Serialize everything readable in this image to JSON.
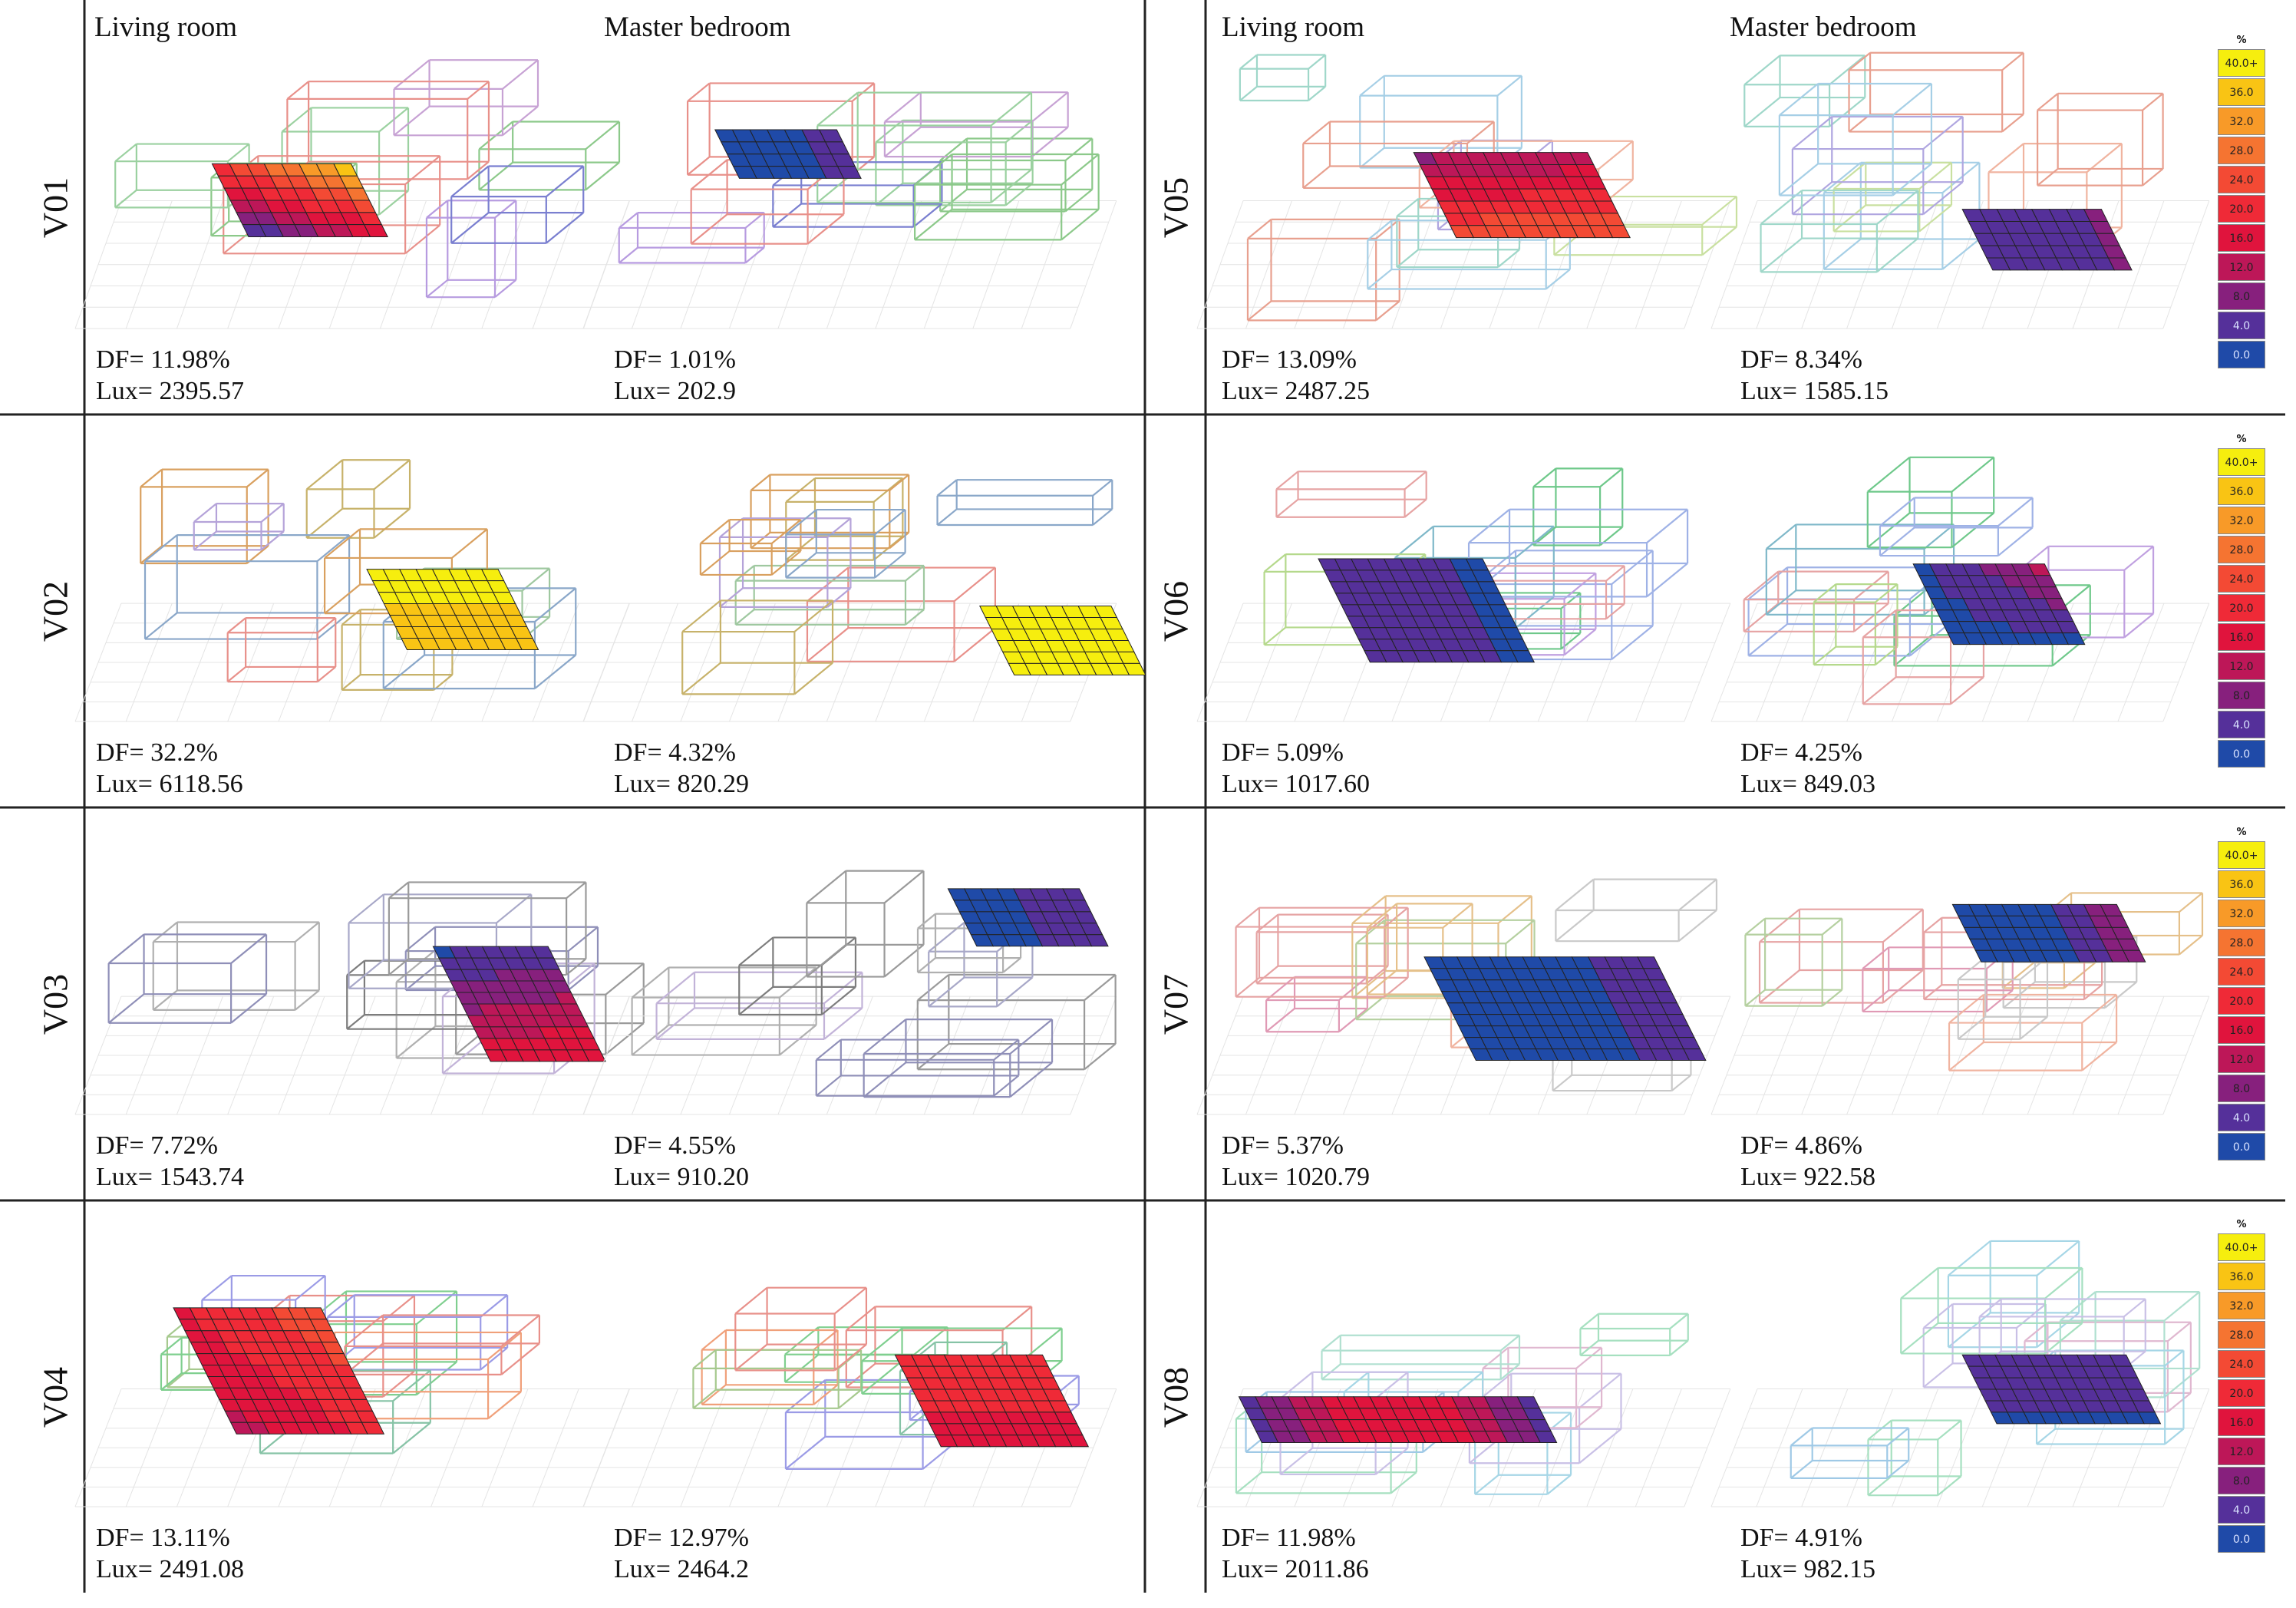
{
  "headers": {
    "left": {
      "col1": "Living room",
      "col2": "Master bedroom"
    },
    "right": {
      "col1": "Living room",
      "col2": "Master bedroom"
    }
  },
  "legend": {
    "unit": "%",
    "labels": [
      "40.0+",
      "36.0",
      "32.0",
      "28.0",
      "24.0",
      "20.0",
      "16.0",
      "12.0",
      "8.0",
      "4.0",
      "0.0"
    ],
    "colors": [
      "#f6ee0e",
      "#f9c414",
      "#f89a28",
      "#f57431",
      "#f34a34",
      "#ef2a37",
      "#e0143d",
      "#bd1758",
      "#87207d",
      "#55309a",
      "#1f4aa8"
    ]
  },
  "variants": [
    {
      "id": "V01",
      "living": {
        "df": "DF= 11.98%",
        "lux": "Lux= 2395.57"
      },
      "bedroom": {
        "df": "DF= 1.01%",
        "lux": "Lux= 202.9"
      }
    },
    {
      "id": "V02",
      "living": {
        "df": "DF= 32.2%",
        "lux": "Lux= 6118.56"
      },
      "bedroom": {
        "df": "DF= 4.32%",
        "lux": "Lux= 820.29"
      }
    },
    {
      "id": "V03",
      "living": {
        "df": "DF= 7.72%",
        "lux": "Lux= 1543.74"
      },
      "bedroom": {
        "df": "DF= 4.55%",
        "lux": "Lux= 910.20"
      }
    },
    {
      "id": "V04",
      "living": {
        "df": "DF= 13.11%",
        "lux": "Lux= 2491.08"
      },
      "bedroom": {
        "df": "DF= 12.97%",
        "lux": "Lux= 2464.2"
      }
    },
    {
      "id": "V05",
      "living": {
        "df": "DF= 13.09%",
        "lux": "Lux= 2487.25"
      },
      "bedroom": {
        "df": "DF= 8.34%",
        "lux": "Lux= 1585.15"
      }
    },
    {
      "id": "V06",
      "living": {
        "df": "DF= 5.09%",
        "lux": "Lux= 1017.60"
      },
      "bedroom": {
        "df": "DF= 4.25%",
        "lux": "Lux= 849.03"
      }
    },
    {
      "id": "V07",
      "living": {
        "df": "DF= 5.37%",
        "lux": "Lux= 1020.79"
      },
      "bedroom": {
        "df": "DF= 4.86%",
        "lux": "Lux= 922.58"
      }
    },
    {
      "id": "V08",
      "living": {
        "df": "DF= 11.98%",
        "lux": "Lux= 2011.86"
      },
      "bedroom": {
        "df": "DF= 4.91%",
        "lux": "Lux= 982.15"
      }
    }
  ]
}
